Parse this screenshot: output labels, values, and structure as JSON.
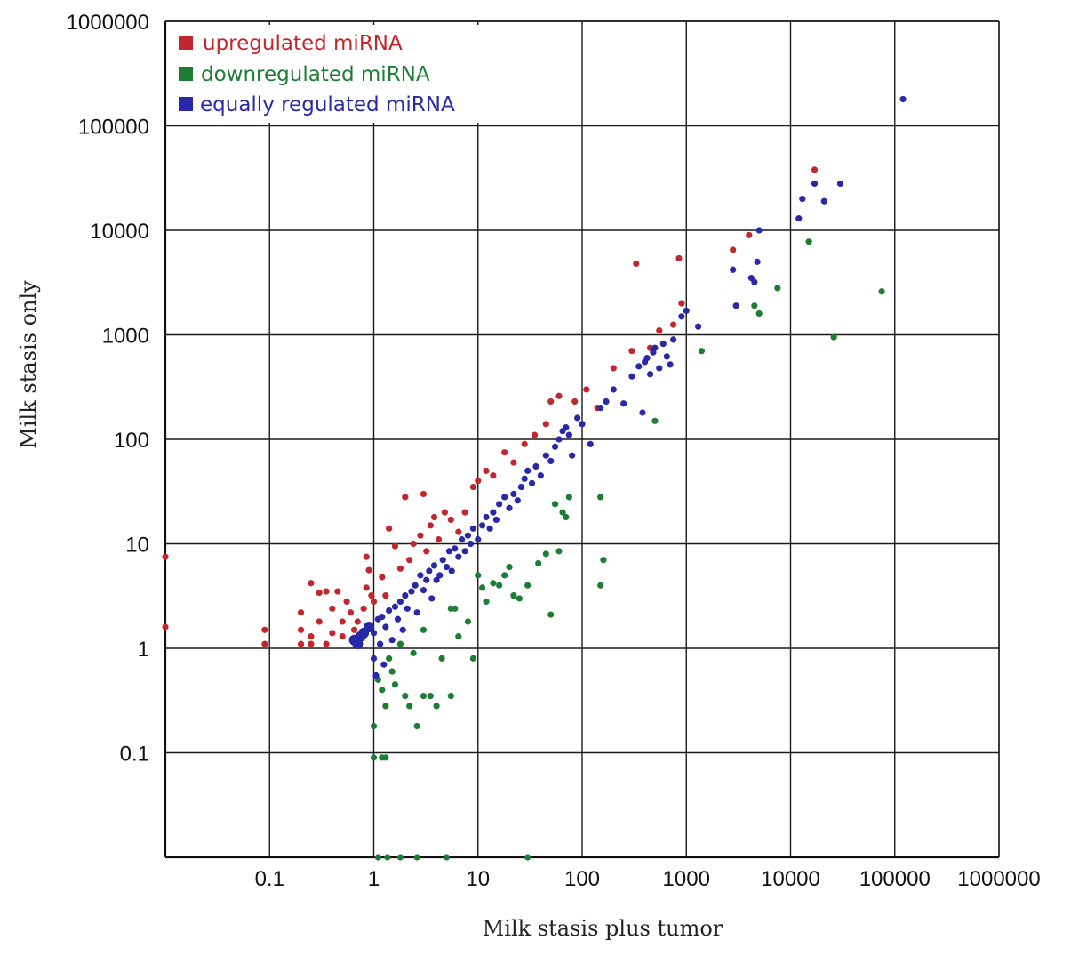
{
  "chart_data": {
    "type": "scatter",
    "xlabel": "Milk stasis plus tumor",
    "ylabel": "Milk stasis only",
    "x_scale": "log",
    "y_scale": "log",
    "xlim": [
      0.01,
      1000000
    ],
    "ylim": [
      0.01,
      1000000
    ],
    "x_ticks": [
      "0.1",
      "1",
      "10",
      "100",
      "1000",
      "10000",
      "100000",
      "1000000"
    ],
    "y_ticks": [
      "0.1",
      "1",
      "10",
      "100",
      "1000",
      "10000",
      "100000",
      "1000000"
    ],
    "grid": true,
    "legend_position": "top-left",
    "series": [
      {
        "name": "upregulated miRNA",
        "color": "#c0282d",
        "points": [
          [
            0.01,
            7.5
          ],
          [
            0.01,
            1.6
          ],
          [
            0.09,
            1.5
          ],
          [
            0.09,
            1.1
          ],
          [
            0.2,
            1.5
          ],
          [
            0.2,
            2.2
          ],
          [
            0.2,
            1.1
          ],
          [
            0.25,
            4.2
          ],
          [
            0.25,
            1.3
          ],
          [
            0.25,
            1.1
          ],
          [
            0.3,
            1.8
          ],
          [
            0.3,
            3.4
          ],
          [
            0.35,
            1.1
          ],
          [
            0.35,
            3.5
          ],
          [
            0.4,
            1.4
          ],
          [
            0.4,
            2.4
          ],
          [
            0.45,
            3.5
          ],
          [
            0.5,
            1.8
          ],
          [
            0.5,
            1.3
          ],
          [
            0.55,
            2.8
          ],
          [
            0.6,
            2.2
          ],
          [
            0.65,
            1.5
          ],
          [
            0.7,
            1.8
          ],
          [
            0.8,
            2.4
          ],
          [
            0.85,
            3.8
          ],
          [
            0.85,
            7.5
          ],
          [
            0.9,
            5.6
          ],
          [
            0.95,
            3.2
          ],
          [
            1.0,
            2.8
          ],
          [
            1.2,
            4.8
          ],
          [
            1.3,
            3.2
          ],
          [
            1.4,
            14
          ],
          [
            1.6,
            9.5
          ],
          [
            1.8,
            5.8
          ],
          [
            2.0,
            28
          ],
          [
            2.2,
            7.0
          ],
          [
            2.4,
            10
          ],
          [
            2.8,
            12
          ],
          [
            3.0,
            30
          ],
          [
            3.2,
            8.5
          ],
          [
            3.5,
            15
          ],
          [
            3.8,
            18
          ],
          [
            4.2,
            11
          ],
          [
            4.8,
            20
          ],
          [
            5.5,
            17
          ],
          [
            6.5,
            13
          ],
          [
            7.5,
            20
          ],
          [
            9.0,
            35
          ],
          [
            10,
            40
          ],
          [
            12,
            50
          ],
          [
            14,
            45
          ],
          [
            18,
            75
          ],
          [
            22,
            60
          ],
          [
            28,
            90
          ],
          [
            35,
            110
          ],
          [
            45,
            140
          ],
          [
            50,
            230
          ],
          [
            60,
            260
          ],
          [
            85,
            230
          ],
          [
            110,
            300
          ],
          [
            140,
            200
          ],
          [
            200,
            480
          ],
          [
            300,
            700
          ],
          [
            330,
            4800
          ],
          [
            450,
            750
          ],
          [
            550,
            1100
          ],
          [
            750,
            1250
          ],
          [
            850,
            5400
          ],
          [
            900,
            2000
          ],
          [
            2800,
            6500
          ],
          [
            4000,
            9000
          ],
          [
            17000,
            38000
          ]
        ]
      },
      {
        "name": "downregulated miRNA",
        "color": "#1e7d34",
        "points": [
          [
            1.0,
            0.18
          ],
          [
            1.0,
            0.09
          ],
          [
            1.1,
            0.5
          ],
          [
            1.1,
            0.01
          ],
          [
            1.2,
            0.09
          ],
          [
            1.2,
            0.4
          ],
          [
            1.3,
            0.28
          ],
          [
            1.3,
            0.09
          ],
          [
            1.35,
            0.01
          ],
          [
            1.4,
            0.8
          ],
          [
            1.5,
            0.6
          ],
          [
            1.6,
            0.45
          ],
          [
            1.8,
            1.1
          ],
          [
            1.8,
            0.01
          ],
          [
            2.0,
            0.35
          ],
          [
            2.2,
            0.28
          ],
          [
            2.4,
            0.9
          ],
          [
            2.6,
            0.18
          ],
          [
            2.6,
            0.01
          ],
          [
            3.0,
            1.5
          ],
          [
            3.0,
            0.35
          ],
          [
            3.5,
            0.35
          ],
          [
            4.0,
            0.28
          ],
          [
            4.5,
            0.8
          ],
          [
            5.0,
            0.01
          ],
          [
            5.5,
            0.35
          ],
          [
            5.5,
            2.4
          ],
          [
            6.0,
            2.4
          ],
          [
            6.5,
            1.3
          ],
          [
            8.0,
            1.8
          ],
          [
            9.0,
            0.8
          ],
          [
            10,
            5.0
          ],
          [
            11,
            3.8
          ],
          [
            12,
            2.8
          ],
          [
            14,
            4.2
          ],
          [
            16,
            4.0
          ],
          [
            18,
            5.0
          ],
          [
            20,
            6.0
          ],
          [
            22,
            3.2
          ],
          [
            25,
            3.0
          ],
          [
            30,
            4.0
          ],
          [
            30,
            0.01
          ],
          [
            38,
            6.5
          ],
          [
            45,
            8.0
          ],
          [
            50,
            2.1
          ],
          [
            55,
            24
          ],
          [
            60,
            8.5
          ],
          [
            65,
            20
          ],
          [
            70,
            18
          ],
          [
            75,
            28
          ],
          [
            150,
            28
          ],
          [
            160,
            7.0
          ],
          [
            150,
            4.0
          ],
          [
            500,
            150
          ],
          [
            1400,
            700
          ],
          [
            4500,
            1900
          ],
          [
            5000,
            1600
          ],
          [
            7500,
            2800
          ],
          [
            15000,
            7800
          ],
          [
            26000,
            950
          ],
          [
            75000,
            2600
          ]
        ]
      },
      {
        "name": "equally regulated miRNA",
        "color": "#2828a8",
        "points": [
          [
            0.65,
            1.2
          ],
          [
            0.7,
            1.1
          ],
          [
            0.75,
            1.3
          ],
          [
            0.8,
            1.4
          ],
          [
            0.9,
            1.6
          ],
          [
            1.0,
            0.8
          ],
          [
            1.0,
            1.4
          ],
          [
            1.05,
            0.55
          ],
          [
            1.1,
            1.9
          ],
          [
            1.15,
            1.1
          ],
          [
            1.2,
            2.0
          ],
          [
            1.25,
            0.7
          ],
          [
            1.3,
            1.6
          ],
          [
            1.4,
            2.3
          ],
          [
            1.5,
            1.2
          ],
          [
            1.6,
            2.5
          ],
          [
            1.7,
            1.9
          ],
          [
            1.8,
            2.8
          ],
          [
            1.9,
            1.5
          ],
          [
            2.0,
            3.2
          ],
          [
            2.1,
            2.4
          ],
          [
            2.3,
            3.5
          ],
          [
            2.5,
            4.0
          ],
          [
            2.6,
            2.2
          ],
          [
            2.8,
            5.0
          ],
          [
            3.0,
            3.6
          ],
          [
            3.2,
            4.5
          ],
          [
            3.4,
            5.5
          ],
          [
            3.6,
            3.0
          ],
          [
            3.8,
            6.2
          ],
          [
            4.0,
            4.5
          ],
          [
            4.3,
            5.0
          ],
          [
            4.6,
            7.0
          ],
          [
            5.0,
            6.0
          ],
          [
            5.3,
            8.5
          ],
          [
            5.6,
            5.5
          ],
          [
            6.0,
            9.0
          ],
          [
            6.5,
            7.5
          ],
          [
            7.0,
            11
          ],
          [
            7.5,
            8.5
          ],
          [
            8.0,
            12
          ],
          [
            8.5,
            10
          ],
          [
            9.0,
            14
          ],
          [
            10,
            11
          ],
          [
            11,
            15
          ],
          [
            12,
            18
          ],
          [
            13,
            14
          ],
          [
            14,
            20
          ],
          [
            15,
            17
          ],
          [
            16,
            24
          ],
          [
            18,
            28
          ],
          [
            20,
            22
          ],
          [
            22,
            30
          ],
          [
            24,
            26
          ],
          [
            26,
            35
          ],
          [
            28,
            42
          ],
          [
            30,
            50
          ],
          [
            33,
            38
          ],
          [
            36,
            55
          ],
          [
            40,
            45
          ],
          [
            45,
            70
          ],
          [
            50,
            62
          ],
          [
            55,
            85
          ],
          [
            60,
            100
          ],
          [
            65,
            120
          ],
          [
            70,
            130
          ],
          [
            75,
            110
          ],
          [
            80,
            70
          ],
          [
            90,
            160
          ],
          [
            100,
            140
          ],
          [
            120,
            90
          ],
          [
            150,
            200
          ],
          [
            170,
            230
          ],
          [
            200,
            300
          ],
          [
            250,
            220
          ],
          [
            300,
            400
          ],
          [
            350,
            500
          ],
          [
            380,
            180
          ],
          [
            400,
            550
          ],
          [
            420,
            600
          ],
          [
            450,
            420
          ],
          [
            480,
            680
          ],
          [
            500,
            750
          ],
          [
            550,
            480
          ],
          [
            600,
            820
          ],
          [
            650,
            620
          ],
          [
            700,
            520
          ],
          [
            750,
            900
          ],
          [
            900,
            1500
          ],
          [
            1000,
            1700
          ],
          [
            1300,
            1200
          ],
          [
            2800,
            4200
          ],
          [
            3000,
            1900
          ],
          [
            4200,
            3500
          ],
          [
            4500,
            3200
          ],
          [
            4800,
            5000
          ],
          [
            5000,
            10000
          ],
          [
            12000,
            13000
          ],
          [
            13000,
            20000
          ],
          [
            17000,
            28000
          ],
          [
            21000,
            19000
          ],
          [
            30000,
            28000
          ],
          [
            120000,
            180000
          ]
        ]
      }
    ]
  }
}
